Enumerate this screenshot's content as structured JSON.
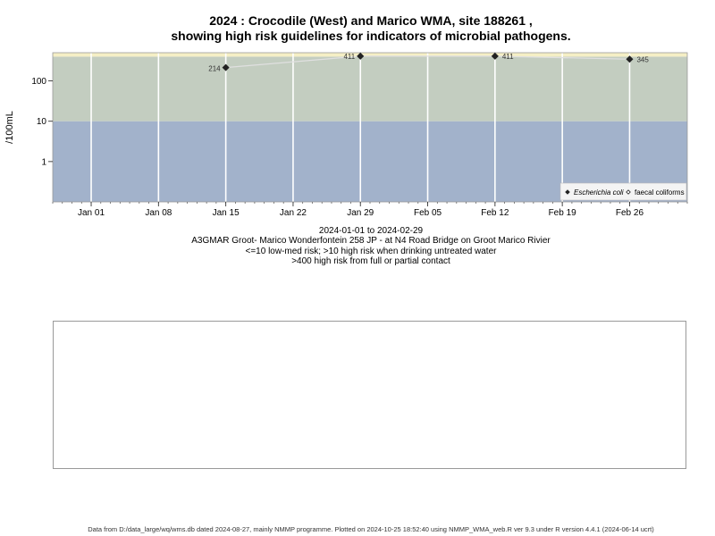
{
  "title_line1": "2024 : Crocodile (West) and Marico WMA, site 188261 ,",
  "title_line2": "showing high risk guidelines for indicators of microbial pathogens.",
  "chart_data": {
    "type": "scatter",
    "ylabel": "/100mL",
    "y_scale": "log",
    "ylim": [
      0.1,
      500
    ],
    "y_ticks": [
      1,
      10,
      100
    ],
    "y_tick_labels": [
      "1",
      "10",
      "100"
    ],
    "xlim": [
      "2023-12-28",
      "2024-03-03"
    ],
    "x_ticks": [
      "2024-01-01",
      "2024-01-08",
      "2024-01-15",
      "2024-01-22",
      "2024-01-29",
      "2024-02-05",
      "2024-02-12",
      "2024-02-19",
      "2024-02-26"
    ],
    "x_tick_labels": [
      "Jan 01",
      "Jan 08",
      "Jan 15",
      "Jan 22",
      "Jan 29",
      "Feb 05",
      "Feb 12",
      "Feb 19",
      "Feb 26"
    ],
    "bands": [
      {
        "from": 0.1,
        "to": 10,
        "color": "#a2b2cb",
        "meaning": "low-med risk"
      },
      {
        "from": 10,
        "to": 400,
        "color": "#c3cdc0",
        "meaning": "high risk when drinking untreated water"
      },
      {
        "from": 400,
        "to": 500,
        "color": "#f5efc5",
        "meaning": "high risk from full or partial contact"
      }
    ],
    "grid": true,
    "legend_position": "bottom-right",
    "series": [
      {
        "name": "Escherichia coli",
        "marker": "filled-diamond",
        "color": "#222222",
        "x": [
          "2024-01-15",
          "2024-01-29",
          "2024-02-12",
          "2024-02-26"
        ],
        "values": [
          214,
          411,
          411,
          345
        ],
        "labels": [
          "214",
          "411",
          "411",
          "345"
        ]
      },
      {
        "name": "faecal coliforms",
        "marker": "open-diamond",
        "color": "#222222",
        "x": [],
        "values": [],
        "labels": []
      }
    ]
  },
  "info": {
    "date_range": "2024-01-01 to 2024-02-29",
    "site": "A3GMAR Groot- Marico Wonderfontein 258 JP - at N4 Road Bridge on Groot Marico Rivier",
    "guideline1": "<=10 low-med risk; >10 high risk when drinking untreated water",
    "guideline2": ">400 high risk from full or partial contact"
  },
  "footer": "Data from D:/data_large/wq/wms.db dated 2024-08-27, mainly NMMP programme. Plotted on 2024-10-25 18:52:40 using NMMP_WMA_web.R ver 9.3 under R version 4.4.1 (2024-06-14 ucrt)"
}
